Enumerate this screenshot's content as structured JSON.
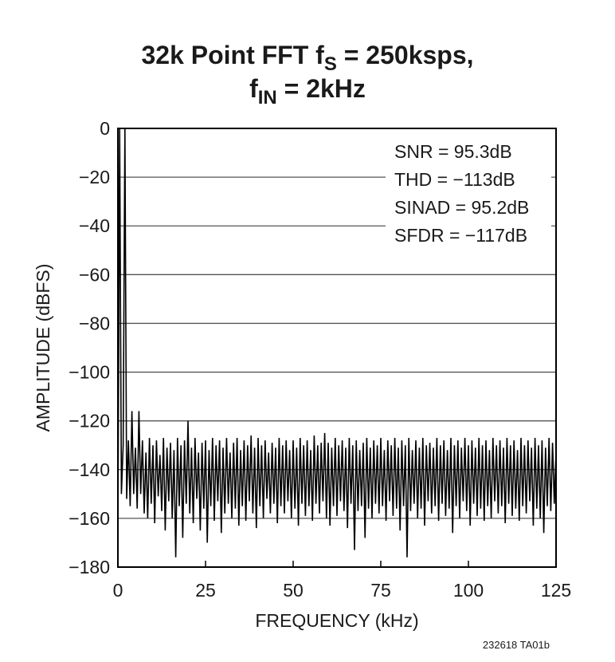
{
  "chart_data": {
    "type": "line",
    "title": [
      [
        "32k Point FFT f",
        "S",
        " = 250ksps,"
      ],
      [
        "f",
        "IN",
        " = 2kHz"
      ]
    ],
    "xlabel": "FREQUENCY (kHz)",
    "ylabel": "AMPLITUDE (dBFS)",
    "annotations": [
      "SNR = 95.3dB",
      "THD = −113dB",
      "SINAD = 95.2dB",
      "SFDR = −117dB"
    ],
    "footnote": "232618 TA01b",
    "color": "#000000",
    "grid": true,
    "xlim": [
      0,
      125
    ],
    "xticks": [
      0,
      25,
      50,
      75,
      100,
      125
    ],
    "ylim": [
      -180,
      0
    ],
    "yticks": [
      0,
      {
        "value": -20,
        "label": "−20"
      },
      {
        "value": -40,
        "label": "−40"
      },
      {
        "value": -60,
        "label": "−60"
      },
      {
        "value": -80,
        "label": "−80"
      },
      {
        "value": -100,
        "label": "−100"
      },
      {
        "value": -120,
        "label": "−120"
      },
      {
        "value": -140,
        "label": "−140"
      },
      {
        "value": -160,
        "label": "−160"
      },
      {
        "value": -180,
        "label": "−180"
      }
    ],
    "x": [
      0,
      0.5,
      1,
      1.5,
      2,
      2.5,
      3,
      3.5,
      4,
      4.5,
      5,
      5.5,
      6,
      6.5,
      7,
      7.5,
      8,
      8.5,
      9,
      9.5,
      10,
      10.5,
      11,
      11.5,
      12,
      12.5,
      13,
      13.5,
      14,
      14.5,
      15,
      15.5,
      16,
      16.5,
      17,
      17.5,
      18,
      18.5,
      19,
      19.5,
      20,
      20.5,
      21,
      21.5,
      22,
      22.5,
      23,
      23.5,
      24,
      24.5,
      25,
      25.5,
      26,
      26.5,
      27,
      27.5,
      28,
      28.5,
      29,
      29.5,
      30,
      30.5,
      31,
      31.5,
      32,
      32.5,
      33,
      33.5,
      34,
      34.5,
      35,
      35.5,
      36,
      36.5,
      37,
      37.5,
      38,
      38.5,
      39,
      39.5,
      40,
      40.5,
      41,
      41.5,
      42,
      42.5,
      43,
      43.5,
      44,
      44.5,
      45,
      45.5,
      46,
      46.5,
      47,
      47.5,
      48,
      48.5,
      49,
      49.5,
      50,
      50.5,
      51,
      51.5,
      52,
      52.5,
      53,
      53.5,
      54,
      54.5,
      55,
      55.5,
      56,
      56.5,
      57,
      57.5,
      58,
      58.5,
      59,
      59.5,
      60,
      60.5,
      61,
      61.5,
      62,
      62.5,
      63,
      63.5,
      64,
      64.5,
      65,
      65.5,
      66,
      66.5,
      67,
      67.5,
      68,
      68.5,
      69,
      69.5,
      70,
      70.5,
      71,
      71.5,
      72,
      72.5,
      73,
      73.5,
      74,
      74.5,
      75,
      75.5,
      76,
      76.5,
      77,
      77.5,
      78,
      78.5,
      79,
      79.5,
      80,
      80.5,
      81,
      81.5,
      82,
      82.5,
      83,
      83.5,
      84,
      84.5,
      85,
      85.5,
      86,
      86.5,
      87,
      87.5,
      88,
      88.5,
      89,
      89.5,
      90,
      90.5,
      91,
      91.5,
      92,
      92.5,
      93,
      93.5,
      94,
      94.5,
      95,
      95.5,
      96,
      96.5,
      97,
      97.5,
      98,
      98.5,
      99,
      99.5,
      100,
      100.5,
      101,
      101.5,
      102,
      102.5,
      103,
      103.5,
      104,
      104.5,
      105,
      105.5,
      106,
      106.5,
      107,
      107.5,
      108,
      108.5,
      109,
      109.5,
      110,
      110.5,
      111,
      111.5,
      112,
      112.5,
      113,
      113.5,
      114,
      114.5,
      115,
      115.5,
      116,
      116.5,
      117,
      117.5,
      118,
      118.5,
      119,
      119.5,
      120,
      120.5,
      121,
      121.5,
      122,
      122.5,
      123,
      123.5,
      124,
      124.5,
      125
    ],
    "values": [
      -166,
      0,
      -150,
      -130,
      0,
      -152,
      -128,
      -155,
      -116,
      -150,
      -131,
      -156,
      -116,
      -150,
      -128,
      -158,
      -133,
      -160,
      -127,
      -154,
      -130,
      -162,
      -128,
      -151,
      -134,
      -157,
      -127,
      -165,
      -131,
      -153,
      -129,
      -160,
      -132,
      -176,
      -127,
      -155,
      -130,
      -168,
      -128,
      -154,
      -120,
      -158,
      -131,
      -162,
      -127,
      -152,
      -133,
      -165,
      -129,
      -156,
      -128,
      -170,
      -132,
      -155,
      -127,
      -161,
      -130,
      -153,
      -128,
      -166,
      -131,
      -158,
      -127,
      -154,
      -133,
      -160,
      -129,
      -156,
      -127,
      -163,
      -132,
      -155,
      -128,
      -161,
      -130,
      -153,
      -126,
      -158,
      -131,
      -164,
      -127,
      -155,
      -130,
      -160,
      -128,
      -152,
      -133,
      -158,
      -129,
      -154,
      -131,
      -162,
      -127,
      -155,
      -130,
      -158,
      -128,
      -153,
      -132,
      -160,
      -128,
      -156,
      -131,
      -163,
      -127,
      -154,
      -130,
      -159,
      -128,
      -155,
      -132,
      -161,
      -126,
      -154,
      -130,
      -158,
      -129,
      -153,
      -125,
      -160,
      -129,
      -163,
      -131,
      -155,
      -127,
      -159,
      -130,
      -153,
      -128,
      -157,
      -131,
      -164,
      -127,
      -154,
      -130,
      -173,
      -128,
      -157,
      -132,
      -155,
      -129,
      -168,
      -127,
      -156,
      -131,
      -160,
      -128,
      -154,
      -130,
      -158,
      -127,
      -155,
      -132,
      -161,
      -128,
      -153,
      -130,
      -159,
      -127,
      -156,
      -131,
      -165,
      -128,
      -155,
      -130,
      -176,
      -127,
      -157,
      -132,
      -154,
      -128,
      -160,
      -131,
      -156,
      -127,
      -163,
      -130,
      -153,
      -129,
      -158,
      -131,
      -155,
      -127,
      -161,
      -130,
      -154,
      -128,
      -159,
      -132,
      -156,
      -127,
      -166,
      -130,
      -155,
      -128,
      -160,
      -131,
      -153,
      -127,
      -157,
      -130,
      -163,
      -128,
      -154,
      -131,
      -159,
      -127,
      -156,
      -130,
      -161,
      -128,
      -155,
      -132,
      -160,
      -127,
      -153,
      -130,
      -158,
      -128,
      -155,
      -131,
      -162,
      -127,
      -154,
      -130,
      -159,
      -128,
      -156,
      -132,
      -161,
      -127,
      -155,
      -130,
      -158,
      -128,
      -153,
      -131,
      -163,
      -127,
      -156,
      -130,
      -160,
      -128,
      -166,
      -131,
      -155,
      -127,
      -157,
      -129,
      -154,
      -132
    ]
  }
}
